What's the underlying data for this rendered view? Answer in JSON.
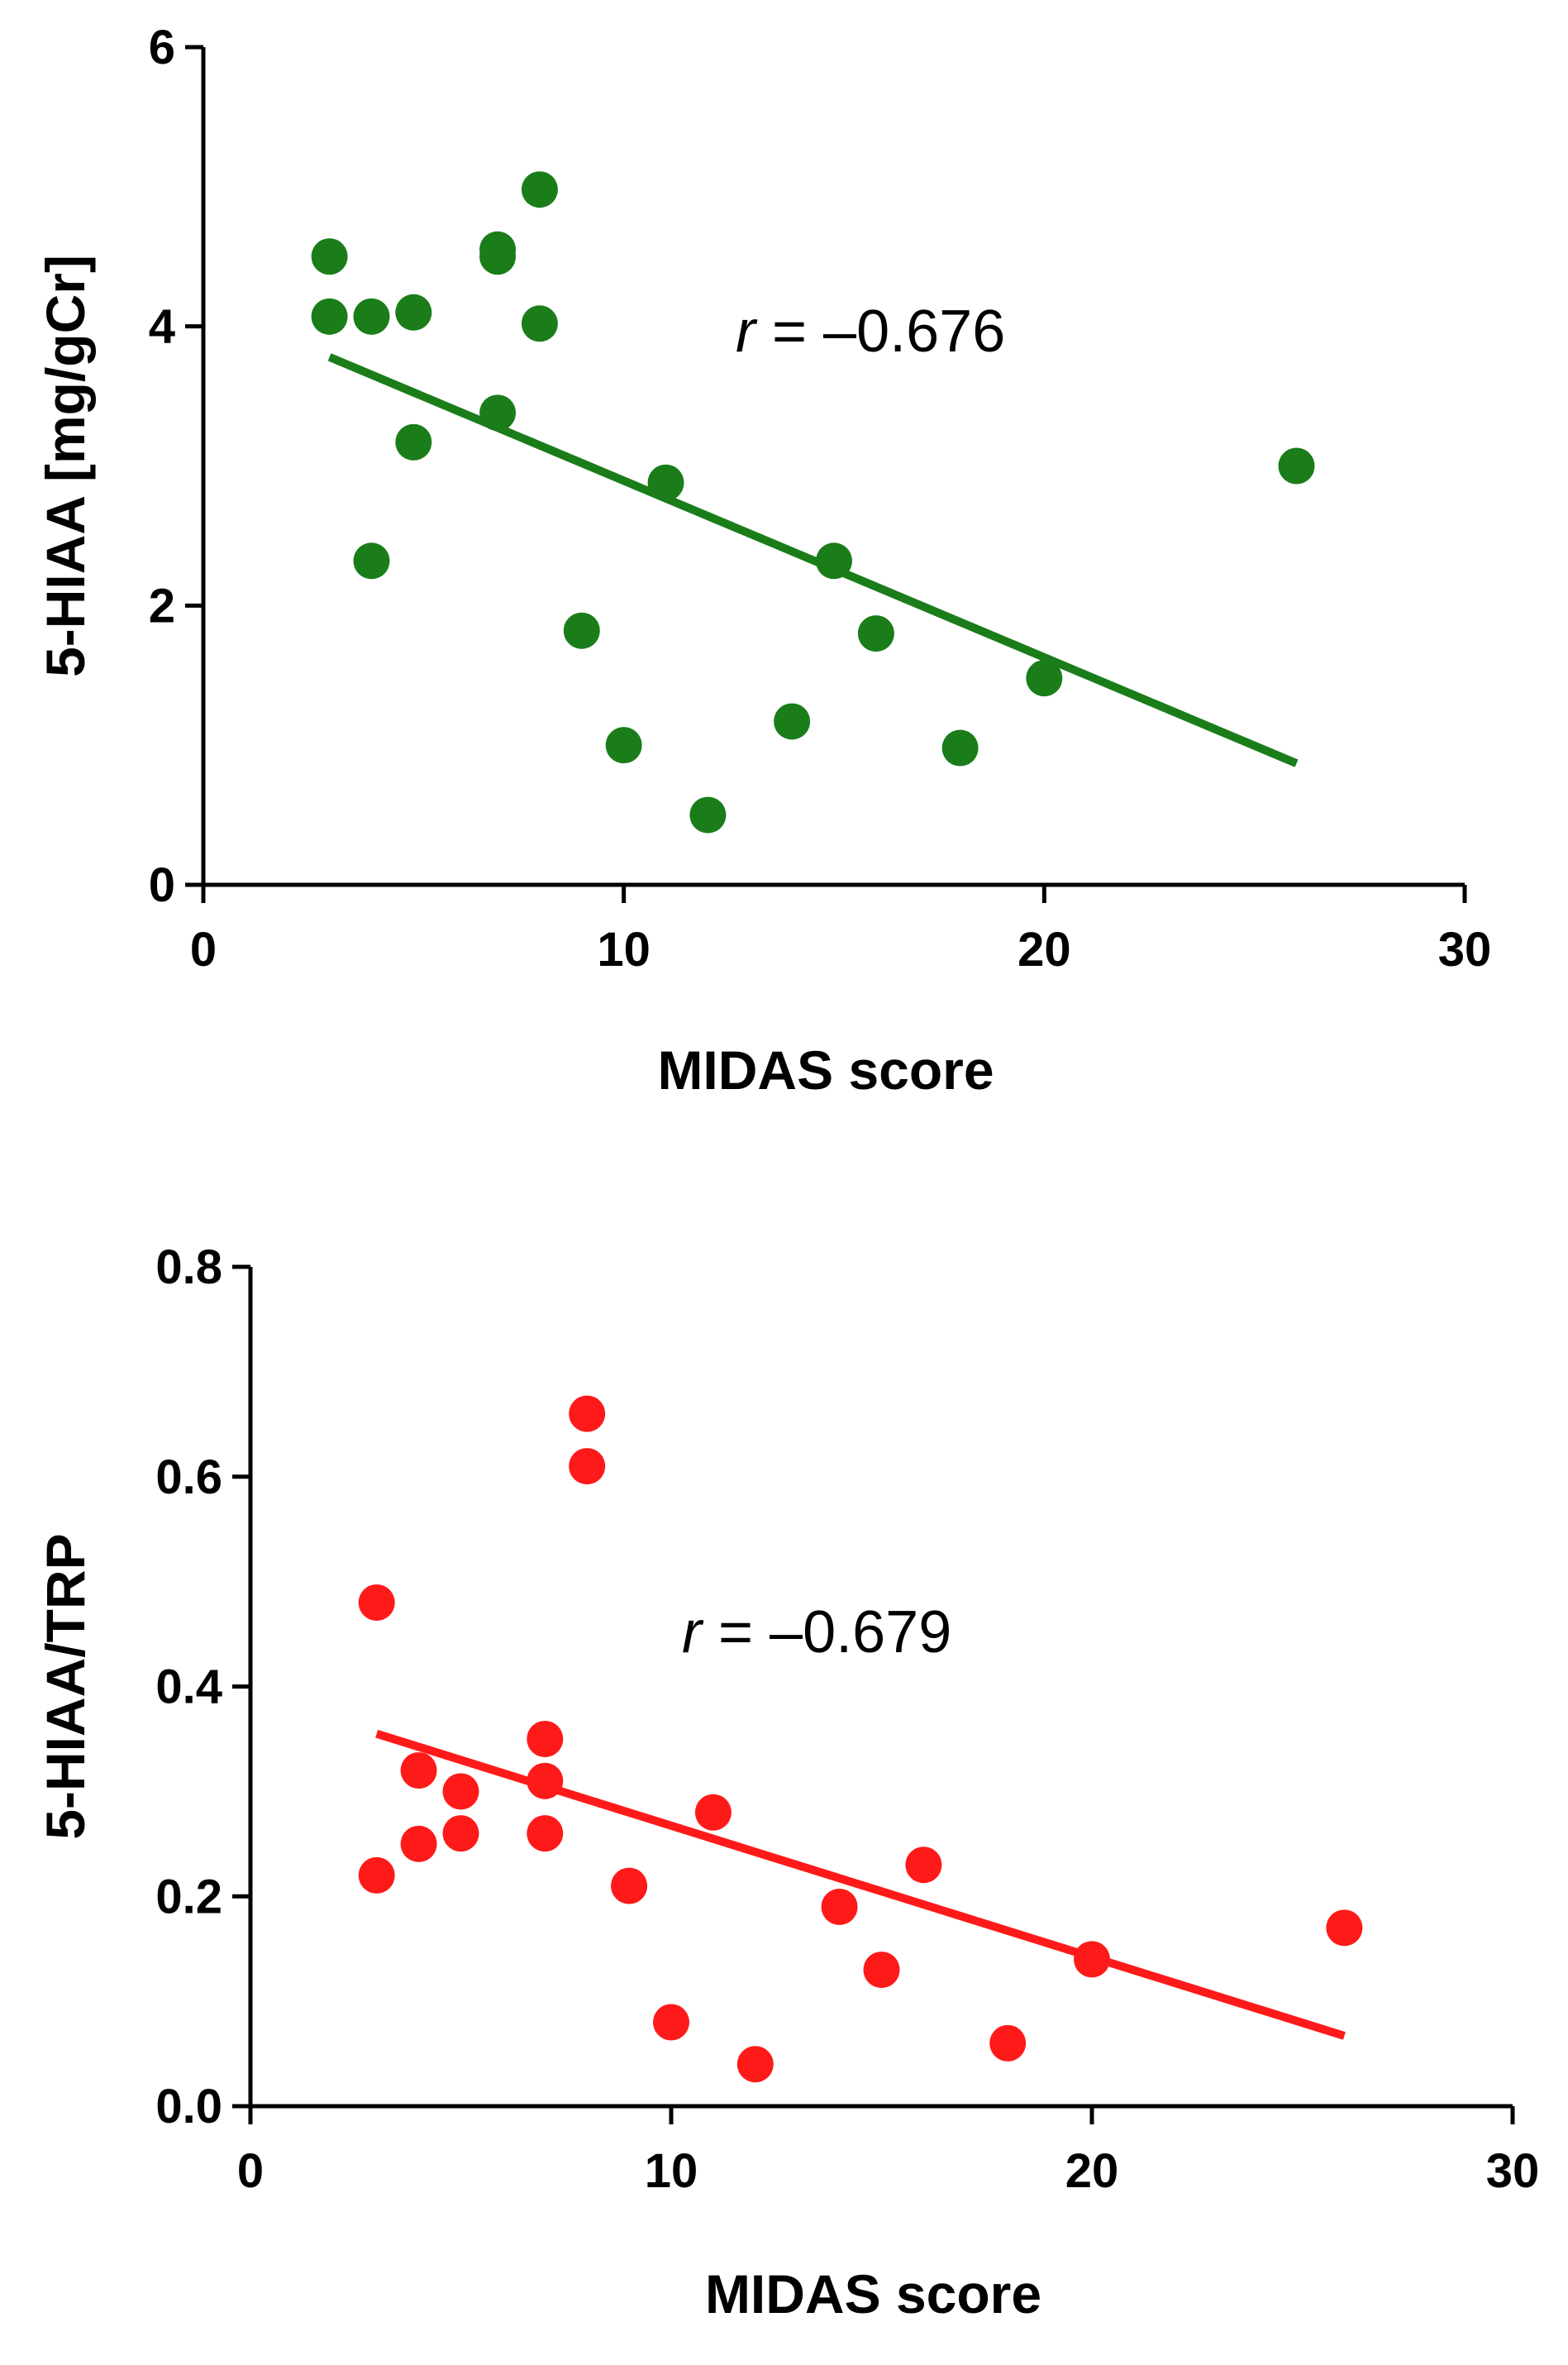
{
  "chart_data": [
    {
      "type": "scatter",
      "title": "",
      "xlabel": "MIDAS score",
      "ylabel": "5-HIAA [mg/gCr]",
      "xlim": [
        0,
        30
      ],
      "ylim": [
        0,
        6
      ],
      "x_ticks": [
        0,
        10,
        20,
        30
      ],
      "y_ticks": [
        0,
        2,
        4,
        6
      ],
      "x_tick_labels": [
        "0",
        "10",
        "20",
        "30"
      ],
      "y_tick_labels": [
        "0",
        "2",
        "4",
        "6"
      ],
      "color": "#1a7d1a",
      "annotation": {
        "var": "r",
        "text": " = –0.676"
      },
      "series": [
        {
          "name": "5-HIAA",
          "points": [
            {
              "x": 3,
              "y": 4.5
            },
            {
              "x": 3,
              "y": 4.07
            },
            {
              "x": 4,
              "y": 4.07
            },
            {
              "x": 5,
              "y": 4.1
            },
            {
              "x": 4,
              "y": 2.32
            },
            {
              "x": 5,
              "y": 3.17
            },
            {
              "x": 7,
              "y": 4.55
            },
            {
              "x": 7,
              "y": 4.5
            },
            {
              "x": 8,
              "y": 4.98
            },
            {
              "x": 8,
              "y": 4.02
            },
            {
              "x": 7,
              "y": 3.38
            },
            {
              "x": 9,
              "y": 1.82
            },
            {
              "x": 10,
              "y": 1.0
            },
            {
              "x": 11,
              "y": 2.88
            },
            {
              "x": 12,
              "y": 0.5
            },
            {
              "x": 14,
              "y": 1.17
            },
            {
              "x": 15,
              "y": 2.32
            },
            {
              "x": 16,
              "y": 1.8
            },
            {
              "x": 18,
              "y": 0.98
            },
            {
              "x": 20,
              "y": 1.48
            },
            {
              "x": 26,
              "y": 3.0
            }
          ]
        }
      ],
      "fit_line": {
        "x1": 3,
        "y1": 3.78,
        "x2": 26,
        "y2": 0.87
      }
    },
    {
      "type": "scatter",
      "title": "",
      "xlabel": "MIDAS score",
      "ylabel": "5-HIAA/TRP",
      "xlim": [
        0,
        30
      ],
      "ylim": [
        0,
        0.8
      ],
      "x_ticks": [
        0,
        10,
        20,
        30
      ],
      "y_ticks": [
        0,
        0.2,
        0.4,
        0.6,
        0.8
      ],
      "x_tick_labels": [
        "0",
        "10",
        "20",
        "30"
      ],
      "y_tick_labels": [
        "0.0",
        "0.2",
        "0.4",
        "0.6",
        "0.8"
      ],
      "color": "#ff1a1a",
      "annotation": {
        "var": "r",
        "text": " = –0.679"
      },
      "series": [
        {
          "name": "5-HIAA/TRP",
          "points": [
            {
              "x": 3,
              "y": 0.48
            },
            {
              "x": 3,
              "y": 0.22
            },
            {
              "x": 4,
              "y": 0.32
            },
            {
              "x": 4,
              "y": 0.25
            },
            {
              "x": 5,
              "y": 0.3
            },
            {
              "x": 5,
              "y": 0.26
            },
            {
              "x": 7,
              "y": 0.35
            },
            {
              "x": 7,
              "y": 0.31
            },
            {
              "x": 7,
              "y": 0.26
            },
            {
              "x": 8,
              "y": 0.66
            },
            {
              "x": 8,
              "y": 0.61
            },
            {
              "x": 9,
              "y": 0.21
            },
            {
              "x": 10,
              "y": 0.08
            },
            {
              "x": 11,
              "y": 0.28
            },
            {
              "x": 12,
              "y": 0.04
            },
            {
              "x": 14,
              "y": 0.19
            },
            {
              "x": 15,
              "y": 0.13
            },
            {
              "x": 16,
              "y": 0.23
            },
            {
              "x": 18,
              "y": 0.06
            },
            {
              "x": 20,
              "y": 0.14
            },
            {
              "x": 26,
              "y": 0.17
            }
          ]
        }
      ],
      "fit_line": {
        "x1": 3,
        "y1": 0.355,
        "x2": 26,
        "y2": 0.067
      }
    }
  ]
}
